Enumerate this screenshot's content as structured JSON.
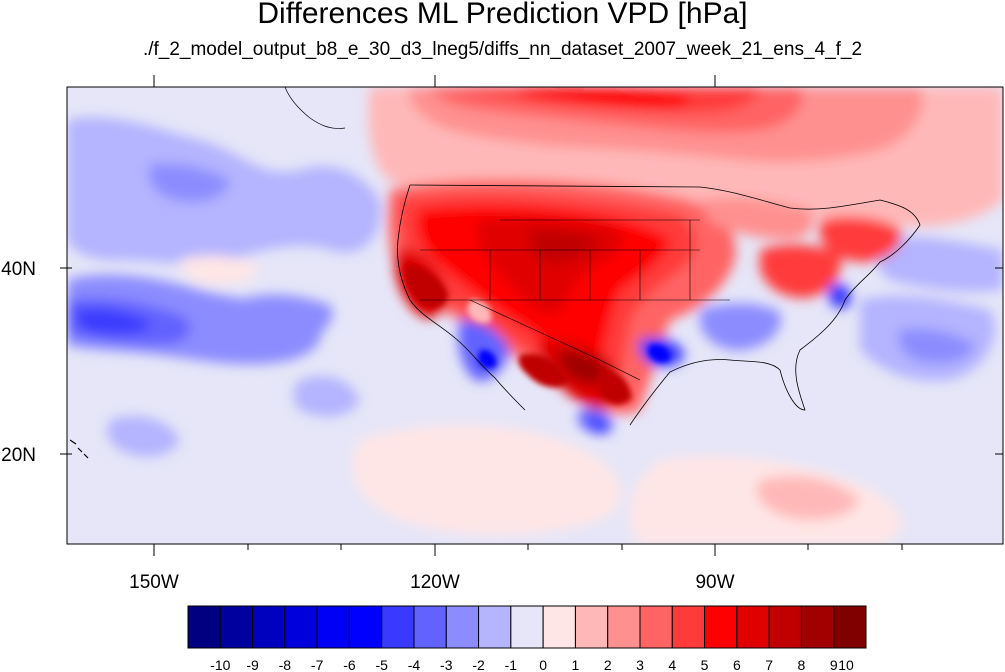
{
  "title": "Differences ML Prediction VPD [hPa]",
  "subtitle": "./f_2_model_output_b8_e_30_d3_lneg5/diffs_nn_dataset_2007_week_21_ens_4_f_2",
  "map": {
    "lon_labels": [
      "150W",
      "120W",
      "90W"
    ],
    "lat_labels": [
      "40N",
      "20N"
    ]
  },
  "colorbar": {
    "labels": [
      "-10",
      "-9",
      "-8",
      "-7",
      "-6",
      "-5",
      "-4",
      "-3",
      "-2",
      "-1",
      "0",
      "1",
      "2",
      "3",
      "4",
      "5",
      "6",
      "7",
      "8",
      "9",
      "10"
    ],
    "colors": [
      "#000080",
      "#00009e",
      "#0000bf",
      "#0000dc",
      "#0000f5",
      "#0000ff",
      "#3a3aff",
      "#6262ff",
      "#8c8cff",
      "#b4b4ff",
      "#e6e6f8",
      "#ffe6e6",
      "#ffb8b8",
      "#ff9090",
      "#ff6464",
      "#ff3a3a",
      "#ff0000",
      "#e00000",
      "#c00000",
      "#a00000",
      "#800000"
    ]
  }
}
